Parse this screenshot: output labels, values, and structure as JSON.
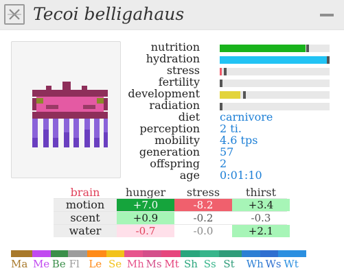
{
  "window": {
    "title": "Tecoi belligahaus",
    "close_icon": "close-x-icon",
    "minimize_icon": "minimize-icon"
  },
  "stats": [
    {
      "label": "nutrition",
      "fill": 0.78,
      "marker": 0.79,
      "color": "#19b31c"
    },
    {
      "label": "hydration",
      "fill": 0.98,
      "marker": 0.99,
      "color": "#22c3f4"
    },
    {
      "label": "stress",
      "fill": 0.02,
      "marker": 0.04,
      "color": "#f05a6a"
    },
    {
      "label": "fertility",
      "fill": 0.0,
      "marker": 0.0,
      "color": "#e6d64a"
    },
    {
      "label": "development",
      "fill": 0.19,
      "marker": 0.21,
      "color": "#e3d43c"
    },
    {
      "label": "radiation",
      "fill": 0.0,
      "marker": 0.0,
      "color": "#888888"
    }
  ],
  "traits": [
    {
      "label": "diet",
      "value": "carnivore"
    },
    {
      "label": "perception",
      "value": "2 ti."
    },
    {
      "label": "mobility",
      "value": "4.6 tps"
    },
    {
      "label": "generation",
      "value": "57"
    },
    {
      "label": "offspring",
      "value": "2"
    },
    {
      "label": "age",
      "value": "0:01:10"
    }
  ],
  "sense": {
    "corner": "brain",
    "columns": [
      "hunger",
      "stress",
      "thirst"
    ],
    "rows": [
      {
        "label": "motion",
        "cells": [
          {
            "v": "+7.0",
            "bg": "#15a43c",
            "fg": "#ffffff"
          },
          {
            "v": "-8.2",
            "bg": "#f0606d",
            "fg": "#ffffff"
          },
          {
            "v": "+3.4",
            "bg": "#a7f5b7",
            "fg": "#1a1a1a"
          }
        ]
      },
      {
        "label": "scent",
        "cells": [
          {
            "v": "+0.9",
            "bg": "#a7f5b7",
            "fg": "#1a1a1a"
          },
          {
            "v": "-0.2",
            "bg": "#ffffff",
            "fg": "#555555"
          },
          {
            "v": "-0.3",
            "bg": "#ffffff",
            "fg": "#555555"
          }
        ]
      },
      {
        "label": "water",
        "cells": [
          {
            "v": "-0.7",
            "bg": "#ffe0ea",
            "fg": "#e0405a"
          },
          {
            "v": "-0.0",
            "bg": "#ffffff",
            "fg": "#888888"
          },
          {
            "v": "+2.1",
            "bg": "#a7f5b7",
            "fg": "#1a1a1a"
          }
        ]
      }
    ]
  },
  "colors": {
    "brain_label": "#e0405a",
    "value_blue": "#1c7fd6"
  },
  "genome": [
    {
      "label": "Ma",
      "color": "#a8792a",
      "share": 0.067
    },
    {
      "label": "Me",
      "color": "#c14af0",
      "share": 0.058
    },
    {
      "label": "Be",
      "color": "#3b8f4a",
      "share": 0.052
    },
    {
      "label": "Fl",
      "color": "#9c9c9c",
      "share": 0.06
    },
    {
      "label": "Le",
      "color": "#ff8b18",
      "share": 0.06
    },
    {
      "label": "Se",
      "color": "#f2c21a",
      "share": 0.056
    },
    {
      "label": "Mh",
      "color": "#e7548c",
      "share": 0.058
    },
    {
      "label": "Ms",
      "color": "#d44f8a",
      "share": 0.056
    },
    {
      "label": "Mt",
      "color": "#e6457d",
      "share": 0.06
    },
    {
      "label": "Sh",
      "color": "#2aa67d",
      "share": 0.06
    },
    {
      "label": "Ss",
      "color": "#37b58b",
      "share": 0.06
    },
    {
      "label": "St",
      "color": "#2f9c7a",
      "share": 0.07
    },
    {
      "label": "Wh",
      "color": "#2c7fd4",
      "share": 0.058
    },
    {
      "label": "Ws",
      "color": "#2e6fd0",
      "share": 0.056
    },
    {
      "label": "Wt",
      "color": "#2b8fe0",
      "share": 0.089
    }
  ],
  "creature": {
    "icon": "creature-jellyfish-sprite"
  }
}
